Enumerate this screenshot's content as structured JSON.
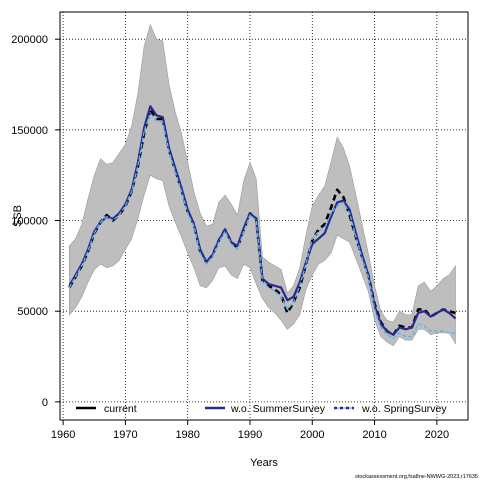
{
  "chart_data": {
    "type": "line",
    "title": "",
    "xlabel": "Years",
    "ylabel": "SSB",
    "xlim": [
      1959.5,
      2025
    ],
    "ylim": [
      -10000,
      215000
    ],
    "x_ticks": [
      1960,
      1970,
      1980,
      1990,
      2000,
      2010,
      2020
    ],
    "y_ticks": [
      0,
      50000,
      100000,
      150000,
      200000
    ],
    "x_tick_labels": [
      "1960",
      "1970",
      "1980",
      "1990",
      "2000",
      "2010",
      "2020"
    ],
    "y_tick_labels": [
      "0",
      "50000",
      "100000",
      "150000",
      "200000"
    ],
    "grid": true,
    "legend_position": "bottom",
    "source_note": "stockassessment.org,fsa8ne-NWWG-2023,r17635",
    "x": [
      1961,
      1962,
      1963,
      1964,
      1965,
      1966,
      1967,
      1968,
      1969,
      1970,
      1971,
      1972,
      1973,
      1974,
      1975,
      1976,
      1977,
      1978,
      1979,
      1980,
      1981,
      1982,
      1983,
      1984,
      1985,
      1986,
      1987,
      1988,
      1989,
      1990,
      1991,
      1992,
      1993,
      1994,
      1995,
      1996,
      1997,
      1998,
      1999,
      2000,
      2001,
      2002,
      2003,
      2004,
      2005,
      2006,
      2007,
      2008,
      2009,
      2010,
      2011,
      2012,
      2013,
      2014,
      2015,
      2016,
      2017,
      2018,
      2019,
      2020,
      2021,
      2022,
      2023
    ],
    "confidence_band": {
      "name": "confidence interval",
      "color": "#bebebe",
      "upper": [
        86000,
        90000,
        98000,
        112000,
        125000,
        134000,
        131000,
        132000,
        137000,
        142000,
        152000,
        170000,
        196000,
        208000,
        200000,
        199000,
        175000,
        160000,
        148000,
        132000,
        116000,
        104000,
        97000,
        98000,
        110000,
        114000,
        109000,
        103000,
        122000,
        132000,
        123000,
        80000,
        77000,
        75000,
        73000,
        60000,
        64000,
        74000,
        92000,
        108000,
        114000,
        119000,
        132000,
        146000,
        140000,
        130000,
        114000,
        98000,
        82000,
        64000,
        50000,
        45000,
        44000,
        50000,
        48000,
        48000,
        64000,
        66000,
        61000,
        64000,
        68000,
        70000,
        75000
      ],
      "lower": [
        48000,
        52000,
        58000,
        66000,
        73000,
        76000,
        74000,
        75000,
        78000,
        84000,
        90000,
        101000,
        114000,
        125000,
        123000,
        122000,
        108000,
        99000,
        91000,
        82000,
        74000,
        64000,
        63000,
        67000,
        74000,
        75000,
        70000,
        68000,
        76000,
        74000,
        65000,
        57000,
        52000,
        49000,
        45000,
        40000,
        43000,
        48000,
        62000,
        70000,
        76000,
        78000,
        82000,
        92000,
        90000,
        88000,
        79000,
        70000,
        61000,
        45000,
        36000,
        33000,
        31000,
        36000,
        34000,
        34000,
        40000,
        40000,
        37000,
        38000,
        38000,
        38000,
        32000
      ]
    },
    "series": [
      {
        "name": "current",
        "color": "#000000",
        "dash": "dashed",
        "values": [
          63000,
          69000,
          75000,
          83000,
          93000,
          99000,
          103000,
          100000,
          103000,
          108000,
          116000,
          130000,
          148000,
          161000,
          156000,
          156000,
          139000,
          128000,
          117000,
          105000,
          98000,
          83000,
          77000,
          81000,
          89000,
          95000,
          88000,
          85000,
          95000,
          104000,
          101000,
          67000,
          64000,
          62000,
          59000,
          49000,
          55000,
          63000,
          76000,
          89000,
          95000,
          98000,
          107000,
          117000,
          113000,
          103000,
          91000,
          80000,
          70000,
          54000,
          44000,
          39000,
          37000,
          42000,
          41000,
          41000,
          51000,
          51000,
          47000,
          49000,
          51000,
          50000,
          49000
        ]
      },
      {
        "name": "w.o. SummerSurvey",
        "color": "#2a2a8e",
        "dash": "solid",
        "values": [
          64000,
          70000,
          76000,
          84000,
          94000,
          99000,
          102000,
          101000,
          104000,
          109000,
          117000,
          132000,
          151000,
          163000,
          158000,
          157000,
          140000,
          129000,
          118000,
          106000,
          98000,
          84000,
          77000,
          81000,
          89000,
          95000,
          88000,
          86000,
          96000,
          104000,
          101000,
          68000,
          65000,
          64000,
          63000,
          56000,
          58000,
          66000,
          77000,
          87000,
          90000,
          93000,
          102000,
          110000,
          111000,
          106000,
          93000,
          81000,
          70000,
          53000,
          43000,
          39000,
          37000,
          41000,
          40000,
          41000,
          49000,
          50000,
          47000,
          49000,
          51000,
          49000,
          46000
        ]
      },
      {
        "name": "w.o. SpringSurvey",
        "color": "#5fb3e8",
        "dash": "dashed",
        "values": [
          63000,
          69000,
          75000,
          83000,
          93000,
          99000,
          102000,
          100000,
          103000,
          108000,
          116000,
          130000,
          149000,
          159000,
          155000,
          154000,
          138000,
          127000,
          116000,
          104000,
          97000,
          82000,
          76000,
          80000,
          88000,
          94000,
          87000,
          84000,
          94000,
          103000,
          100000,
          66000,
          63000,
          61000,
          58000,
          51000,
          55000,
          64000,
          76000,
          90000,
          94000,
          96000,
          104000,
          108000,
          110000,
          104000,
          91000,
          79000,
          69000,
          51000,
          41000,
          37000,
          35000,
          38000,
          36000,
          36000,
          43000,
          42000,
          39000,
          39000,
          39000,
          38000,
          38000
        ]
      }
    ]
  }
}
